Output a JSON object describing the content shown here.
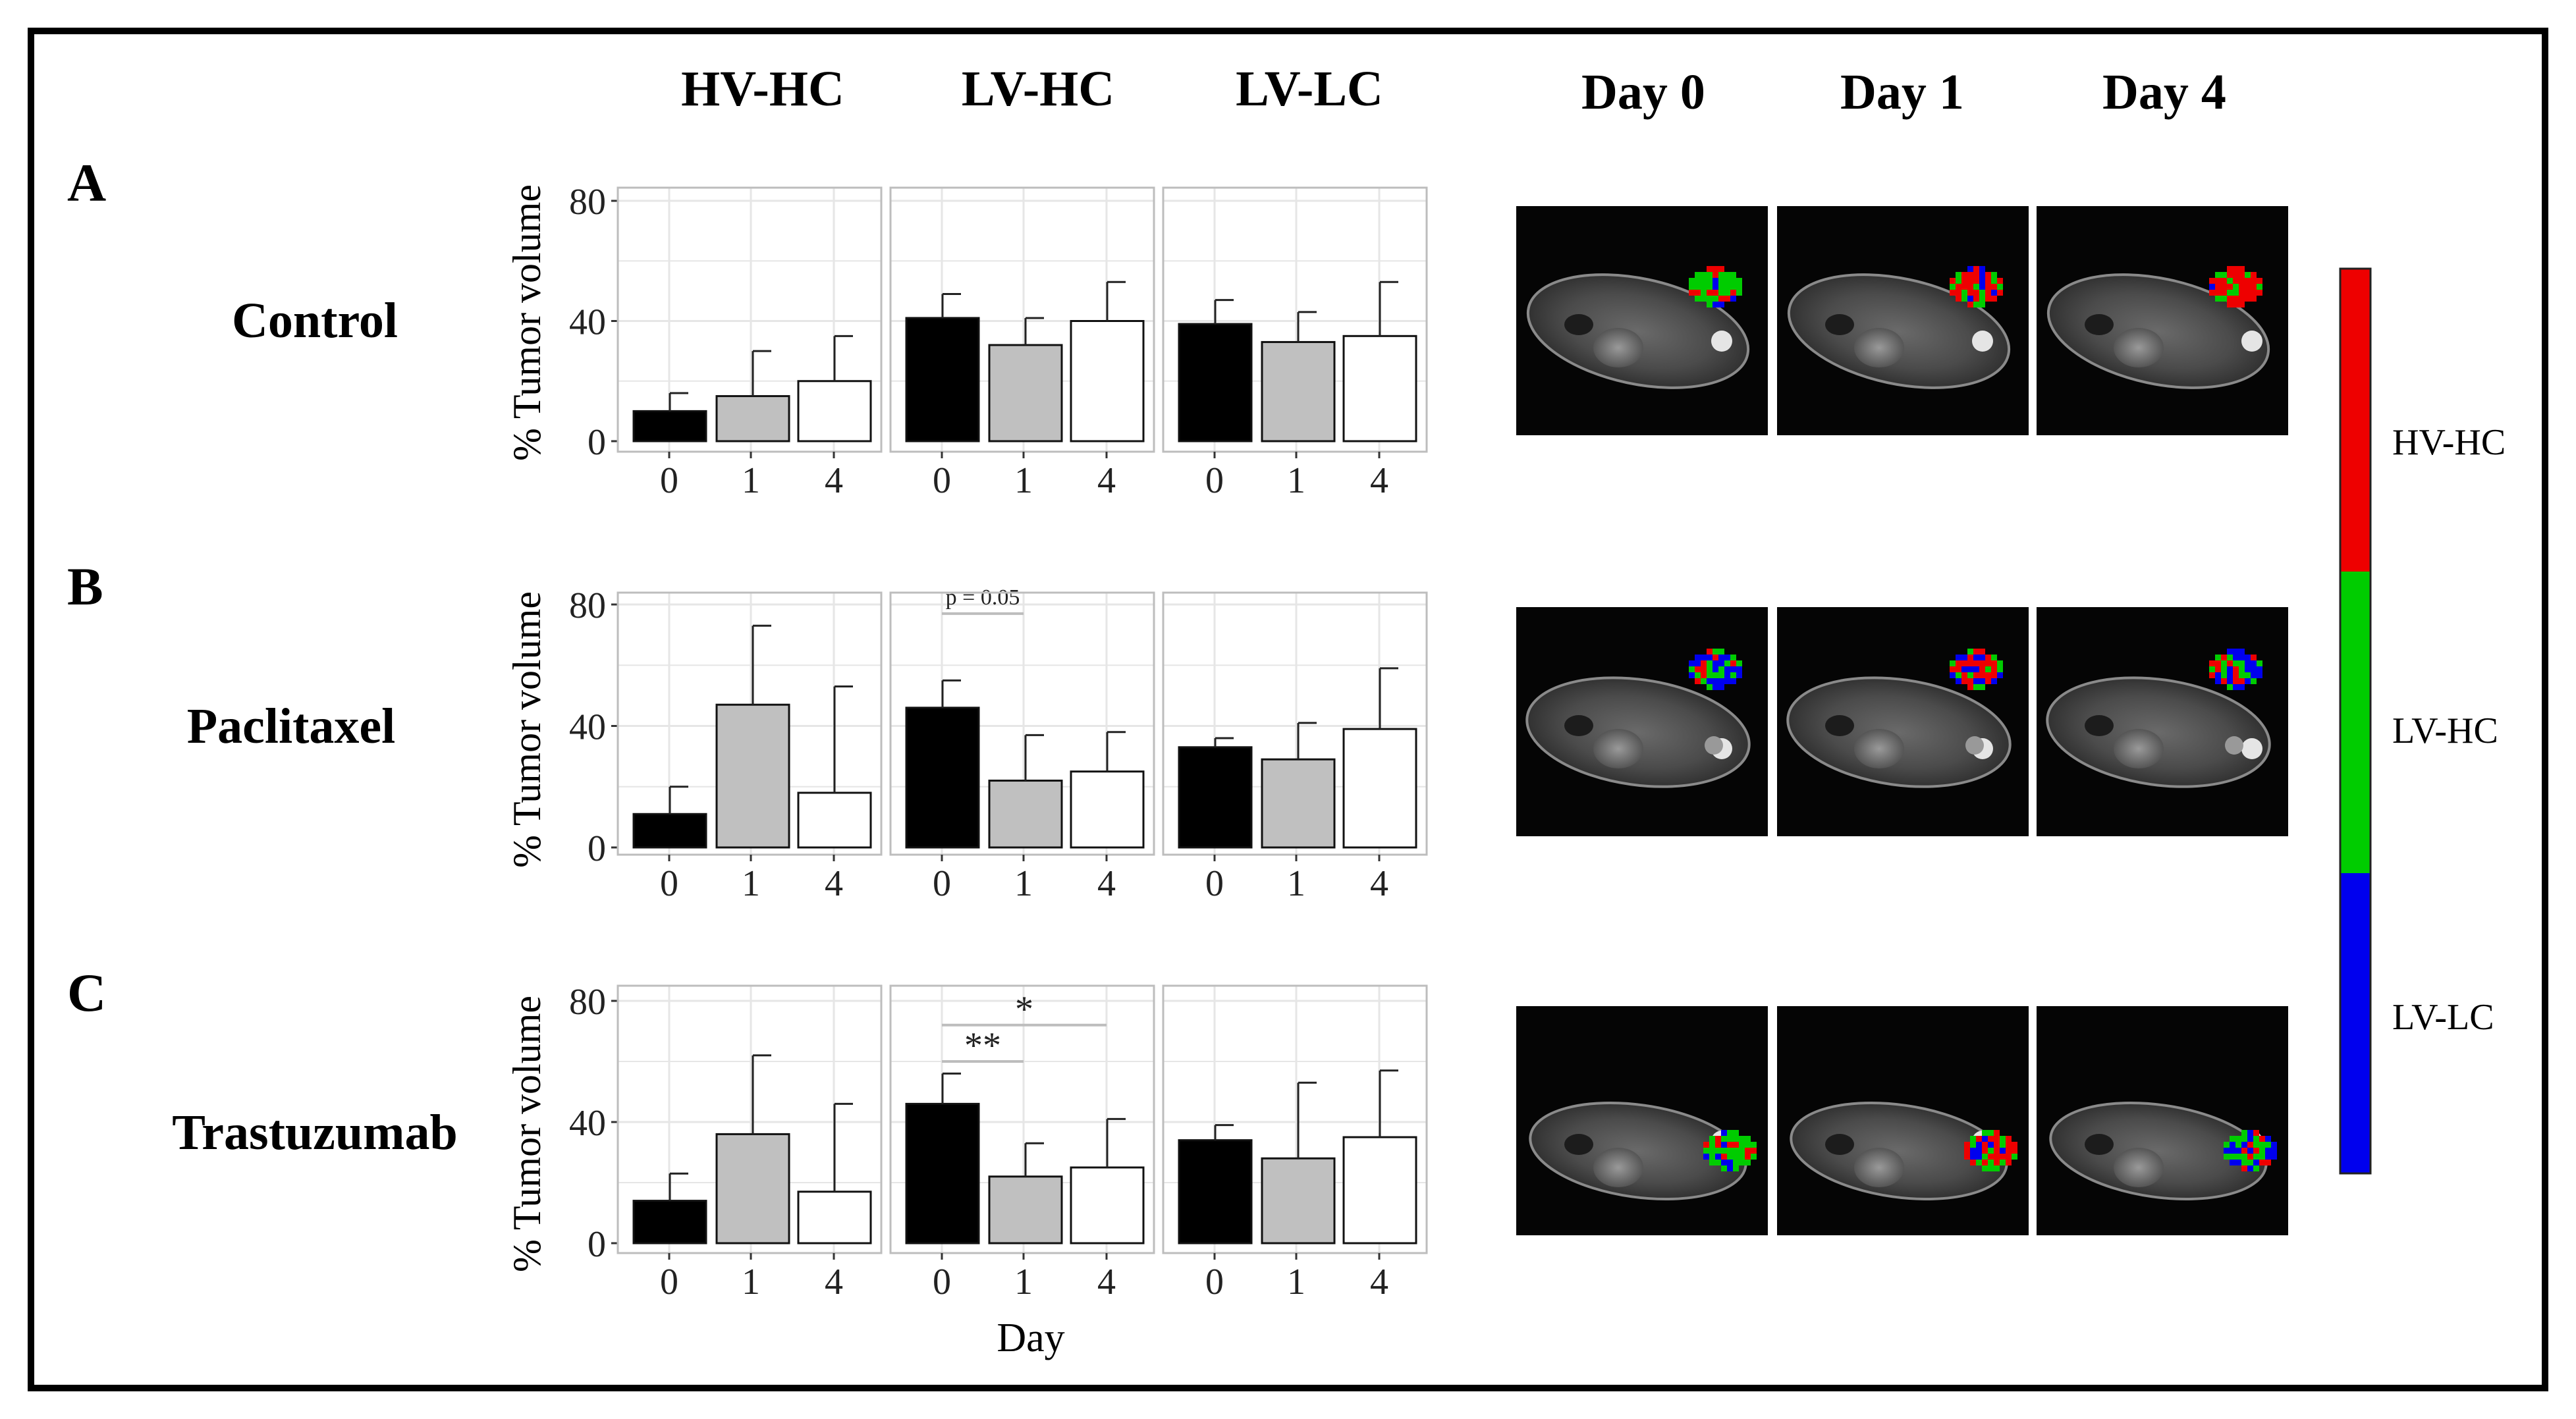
{
  "figure": {
    "colorbar_labels": [
      "HV-HC",
      "LV-HC",
      "LV-LC"
    ],
    "colorbar_colors": [
      "#ee0000",
      "#00cc00",
      "#0000ee"
    ],
    "colors": {
      "black_bar": "#000000",
      "gray_bar": "#c0c0c0",
      "white_bar": "#ffffff",
      "grid": "#e6e6e6",
      "panel_border": "#bdbdbd",
      "sig_line": "#bdbdbd"
    }
  },
  "chart_data": {
    "type": "bar",
    "column_titles": [
      "HV-HC",
      "LV-HC",
      "LV-LC"
    ],
    "image_column_titles": [
      "Day 0",
      "Day 1",
      "Day 4"
    ],
    "categories": [
      "0",
      "1",
      "4"
    ],
    "xlabel": "Day",
    "ylabel": "% Tumor volume",
    "ylim": [
      0,
      85
    ],
    "yticks": [
      0,
      40,
      80
    ],
    "grid": true,
    "rows": [
      {
        "letter": "A",
        "treatment": "Control",
        "panels": [
          {
            "region": "HV-HC",
            "values": [
              10,
              15,
              20
            ],
            "errors": [
              6,
              15,
              15
            ],
            "annotations": []
          },
          {
            "region": "LV-HC",
            "values": [
              41,
              32,
              40
            ],
            "errors": [
              8,
              9,
              13
            ],
            "annotations": []
          },
          {
            "region": "LV-LC",
            "values": [
              39,
              33,
              35
            ],
            "errors": [
              8,
              10,
              18
            ],
            "annotations": []
          }
        ]
      },
      {
        "letter": "B",
        "treatment": "Paclitaxel",
        "panels": [
          {
            "region": "HV-HC",
            "values": [
              11,
              47,
              18
            ],
            "errors": [
              9,
              26,
              35
            ],
            "annotations": []
          },
          {
            "region": "LV-HC",
            "values": [
              46,
              22,
              25
            ],
            "errors": [
              9,
              15,
              13
            ],
            "annotations": [
              {
                "label": "p = 0.05",
                "from": "0",
                "to": "1",
                "value": 77
              }
            ]
          },
          {
            "region": "LV-LC",
            "values": [
              33,
              29,
              39
            ],
            "errors": [
              3,
              12,
              20
            ],
            "annotations": []
          }
        ]
      },
      {
        "letter": "C",
        "treatment": "Trastuzumab",
        "panels": [
          {
            "region": "HV-HC",
            "values": [
              14,
              36,
              17
            ],
            "errors": [
              9,
              26,
              29
            ],
            "annotations": []
          },
          {
            "region": "LV-HC",
            "values": [
              46,
              22,
              25
            ],
            "errors": [
              10,
              11,
              16
            ],
            "annotations": [
              {
                "label": "*",
                "from": "0",
                "to": "4",
                "value": 72
              },
              {
                "label": "**",
                "from": "0",
                "to": "1",
                "value": 60
              }
            ]
          },
          {
            "region": "LV-LC",
            "values": [
              34,
              28,
              35
            ],
            "errors": [
              5,
              25,
              22
            ],
            "annotations": []
          }
        ]
      }
    ]
  }
}
